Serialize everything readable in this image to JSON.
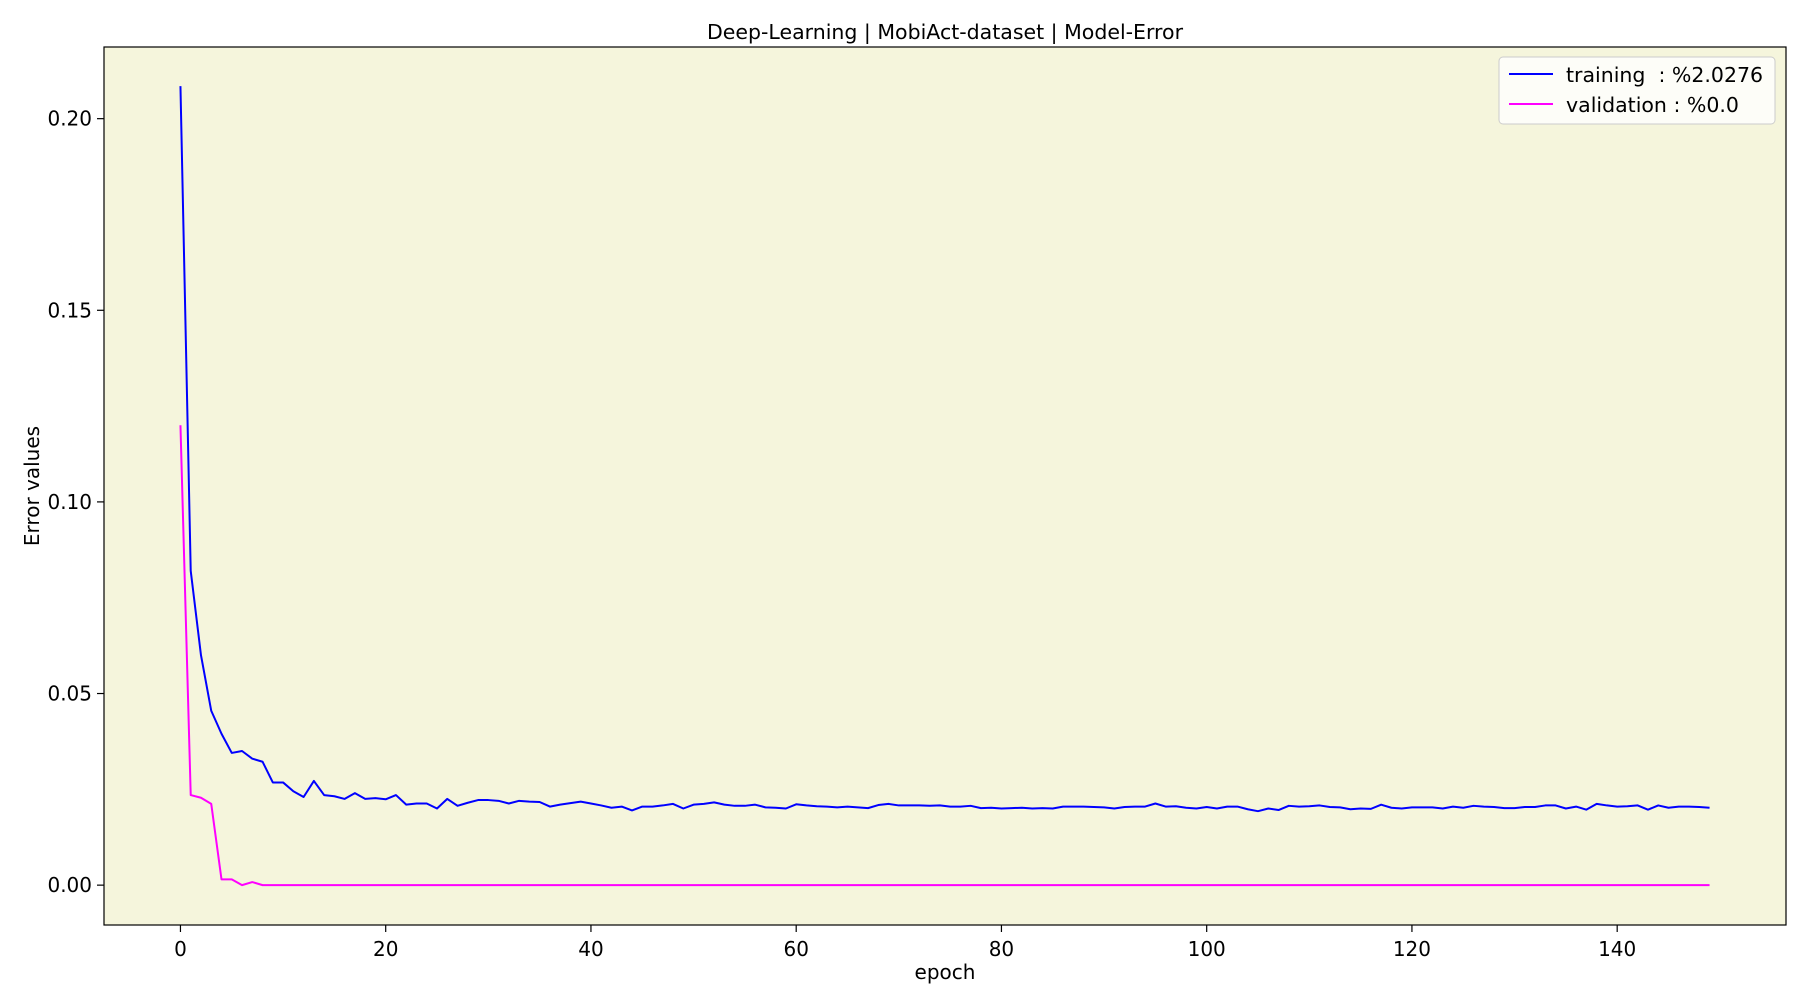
{
  "chart_data": {
    "type": "line",
    "title": "Deep-Learning | MobiAct-dataset  | Model-Error",
    "xlabel": "epoch",
    "ylabel": "Error values",
    "xlim": [
      -7.45,
      156.45
    ],
    "ylim": [
      -0.0104,
      0.2187
    ],
    "xticks": [
      0,
      20,
      40,
      60,
      80,
      100,
      120,
      140
    ],
    "xtick_labels": [
      "0",
      "20",
      "40",
      "60",
      "80",
      "100",
      "120",
      "140"
    ],
    "yticks": [
      0.0,
      0.05,
      0.1,
      0.15,
      0.2
    ],
    "ytick_labels": [
      "0.00",
      "0.05",
      "0.10",
      "0.15",
      "0.20"
    ],
    "grid": false,
    "legend_position": "top-right",
    "plot_background": "#f5f5dc",
    "series": [
      {
        "name": "training  : %2.0276",
        "color": "#0000ff",
        "values": [
          0.2085,
          0.082,
          0.06,
          0.0455,
          0.0395,
          0.0345,
          0.035,
          0.033,
          0.0322,
          0.0268,
          0.0268,
          0.0245,
          0.023,
          0.0272,
          0.0235,
          0.0232,
          0.0225,
          0.024,
          0.0225,
          0.0227,
          0.0224,
          0.0235,
          0.021,
          0.0213,
          0.0213,
          0.02,
          0.0225,
          0.0207,
          0.0215,
          0.0222,
          0.0222,
          0.022,
          0.0213,
          0.022,
          0.0218,
          0.0217,
          0.0205,
          0.021,
          0.0214,
          0.0218,
          0.0213,
          0.0208,
          0.0202,
          0.0205,
          0.0195,
          0.0205,
          0.0205,
          0.0208,
          0.0212,
          0.02,
          0.021,
          0.0212,
          0.0216,
          0.021,
          0.0207,
          0.0207,
          0.021,
          0.0203,
          0.0202,
          0.02,
          0.0211,
          0.0208,
          0.0206,
          0.0205,
          0.0203,
          0.0205,
          0.0203,
          0.0201,
          0.0209,
          0.0212,
          0.0208,
          0.0208,
          0.0208,
          0.0207,
          0.0208,
          0.0205,
          0.0205,
          0.0207,
          0.0201,
          0.0202,
          0.02,
          0.0201,
          0.0202,
          0.02,
          0.0201,
          0.02,
          0.0205,
          0.0205,
          0.0205,
          0.0204,
          0.0203,
          0.02,
          0.0204,
          0.0205,
          0.0205,
          0.0213,
          0.0205,
          0.0206,
          0.0202,
          0.02,
          0.0204,
          0.02,
          0.0205,
          0.0205,
          0.0198,
          0.0193,
          0.02,
          0.0196,
          0.0207,
          0.0205,
          0.0206,
          0.0208,
          0.0204,
          0.0203,
          0.0198,
          0.02,
          0.0199,
          0.021,
          0.0202,
          0.02,
          0.0203,
          0.0203,
          0.0203,
          0.02,
          0.0205,
          0.0202,
          0.0207,
          0.0205,
          0.0204,
          0.0201,
          0.0201,
          0.0204,
          0.0204,
          0.0208,
          0.0208,
          0.02,
          0.0205,
          0.0197,
          0.0212,
          0.0208,
          0.0205,
          0.0206,
          0.0208,
          0.0197,
          0.0208,
          0.0202,
          0.0205,
          0.0205,
          0.0204,
          0.0202
        ]
      },
      {
        "name": "validation : %0.0",
        "color": "#ff00ff",
        "values": [
          0.12,
          0.0235,
          0.0228,
          0.0212,
          0.0015,
          0.0015,
          0.0,
          0.0008,
          0.0,
          0.0,
          0.0,
          0.0,
          0.0,
          0.0,
          0.0,
          0.0,
          0.0,
          0.0,
          0.0,
          0.0,
          0.0,
          0.0,
          0.0,
          0.0,
          0.0,
          0.0,
          0.0,
          0.0,
          0.0,
          0.0,
          0.0,
          0.0,
          0.0,
          0.0,
          0.0,
          0.0,
          0.0,
          0.0,
          0.0,
          0.0,
          0.0,
          0.0,
          0.0,
          0.0,
          0.0,
          0.0,
          0.0,
          0.0,
          0.0,
          0.0,
          0.0,
          0.0,
          0.0,
          0.0,
          0.0,
          0.0,
          0.0,
          0.0,
          0.0,
          0.0,
          0.0,
          0.0,
          0.0,
          0.0,
          0.0,
          0.0,
          0.0,
          0.0,
          0.0,
          0.0,
          0.0,
          0.0,
          0.0,
          0.0,
          0.0,
          0.0,
          0.0,
          0.0,
          0.0,
          0.0,
          0.0,
          0.0,
          0.0,
          0.0,
          0.0,
          0.0,
          0.0,
          0.0,
          0.0,
          0.0,
          0.0,
          0.0,
          0.0,
          0.0,
          0.0,
          0.0,
          0.0,
          0.0,
          0.0,
          0.0,
          0.0,
          0.0,
          0.0,
          0.0,
          0.0,
          0.0,
          0.0,
          0.0,
          0.0,
          0.0,
          0.0,
          0.0,
          0.0,
          0.0,
          0.0,
          0.0,
          0.0,
          0.0,
          0.0,
          0.0,
          0.0,
          0.0,
          0.0,
          0.0,
          0.0,
          0.0,
          0.0,
          0.0,
          0.0,
          0.0,
          0.0,
          0.0,
          0.0,
          0.0,
          0.0,
          0.0,
          0.0,
          0.0,
          0.0,
          0.0,
          0.0,
          0.0,
          0.0,
          0.0,
          0.0,
          0.0,
          0.0,
          0.0,
          0.0,
          0.0
        ]
      }
    ]
  }
}
